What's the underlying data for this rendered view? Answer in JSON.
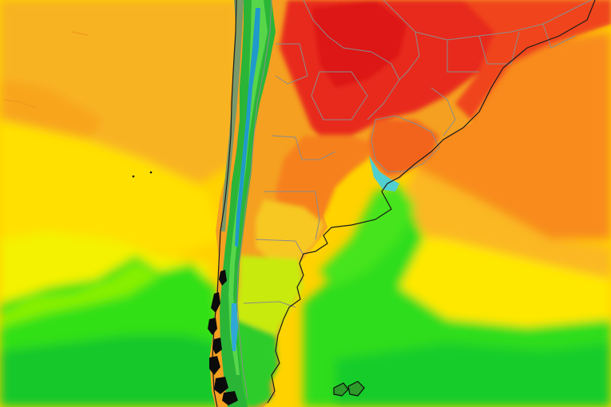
{
  "map": {
    "region": "",
    "palette": {
      "ocean_warm": "#f7a51f",
      "ocean_mid": "#ffcc00",
      "ocean_cool": "#ffee00",
      "green_light": "#7ef000",
      "green": "#22dd22",
      "green_dark": "#11bb33",
      "red_hot": "#e8241a",
      "red": "#f24a1c",
      "orange": "#f7791a",
      "andes_blue": "#1f9acb",
      "land_gray": "#808080",
      "coast_black": "#000000"
    }
  }
}
